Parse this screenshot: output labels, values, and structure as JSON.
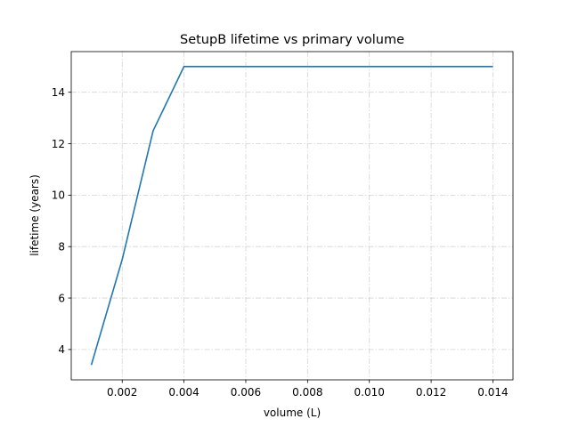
{
  "chart_data": {
    "type": "line",
    "title": "SetupB lifetime vs primary volume",
    "xlabel": "volume (L)",
    "ylabel": "lifetime (years)",
    "xlim": [
      0.00035,
      0.01465
    ],
    "ylim": [
      2.82,
      15.58
    ],
    "x_ticks": [
      0.002,
      0.004,
      0.006,
      0.008,
      0.01,
      0.012,
      0.014
    ],
    "x_tick_labels": [
      "0.002",
      "0.004",
      "0.006",
      "0.008",
      "0.010",
      "0.012",
      "0.014"
    ],
    "y_ticks": [
      4,
      6,
      8,
      10,
      12,
      14
    ],
    "y_tick_labels": [
      "4",
      "6",
      "8",
      "10",
      "12",
      "14"
    ],
    "grid": true,
    "legend": "none",
    "series": [
      {
        "color": "#1f77b4",
        "x": [
          0.001,
          0.002,
          0.003,
          0.004,
          0.005,
          0.006,
          0.007,
          0.008,
          0.009,
          0.01,
          0.011,
          0.012,
          0.013,
          0.014
        ],
        "y": [
          3.4,
          7.5,
          12.5,
          15.0,
          15.0,
          15.0,
          15.0,
          15.0,
          15.0,
          15.0,
          15.0,
          15.0,
          15.0,
          15.0
        ]
      }
    ]
  }
}
